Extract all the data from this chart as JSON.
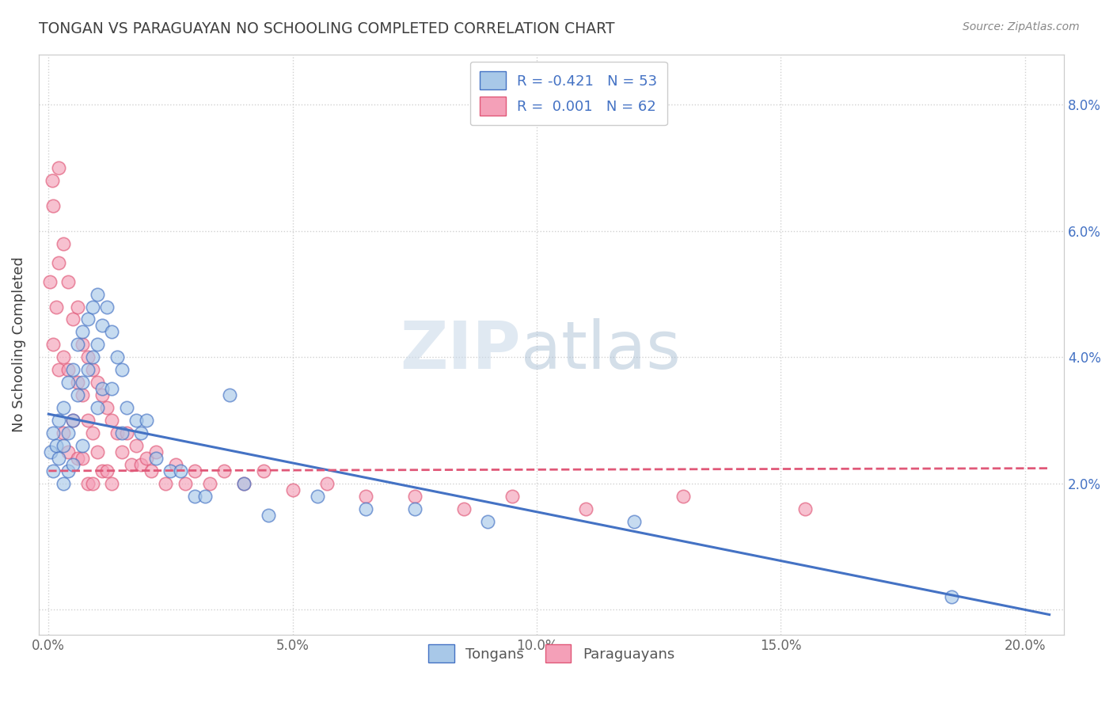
{
  "title": "TONGAN VS PARAGUAYAN NO SCHOOLING COMPLETED CORRELATION CHART",
  "source": "Source: ZipAtlas.com",
  "ylabel": "No Schooling Completed",
  "legend_tongan_label": "Tongans",
  "legend_paraguayan_label": "Paraguayans",
  "legend_line1": "R = -0.421   N = 53",
  "legend_line2": "R =  0.001   N = 62",
  "xlim": [
    -0.002,
    0.208
  ],
  "ylim": [
    -0.004,
    0.088
  ],
  "xticks": [
    0.0,
    0.05,
    0.1,
    0.15,
    0.2
  ],
  "xticklabels": [
    "0.0%",
    "5.0%",
    "10.0%",
    "15.0%",
    "20.0%"
  ],
  "yticks": [
    0.0,
    0.02,
    0.04,
    0.06,
    0.08
  ],
  "yticklabels_right": [
    "",
    "2.0%",
    "4.0%",
    "6.0%",
    "8.0%"
  ],
  "color_tongan": "#a8c8e8",
  "color_paraguayan": "#f4a0b8",
  "line_color_tongan": "#4472c4",
  "line_color_paraguayan": "#e05878",
  "background_color": "#ffffff",
  "title_color": "#404040",
  "grid_color": "#cccccc",
  "tongan_x": [
    0.0005,
    0.001,
    0.001,
    0.0015,
    0.002,
    0.002,
    0.003,
    0.003,
    0.003,
    0.004,
    0.004,
    0.004,
    0.005,
    0.005,
    0.005,
    0.006,
    0.006,
    0.007,
    0.007,
    0.007,
    0.008,
    0.008,
    0.009,
    0.009,
    0.01,
    0.01,
    0.01,
    0.011,
    0.011,
    0.012,
    0.013,
    0.013,
    0.014,
    0.015,
    0.015,
    0.016,
    0.018,
    0.019,
    0.02,
    0.022,
    0.025,
    0.027,
    0.03,
    0.032,
    0.037,
    0.04,
    0.045,
    0.055,
    0.065,
    0.075,
    0.09,
    0.12,
    0.185
  ],
  "tongan_y": [
    0.025,
    0.022,
    0.028,
    0.026,
    0.024,
    0.03,
    0.032,
    0.026,
    0.02,
    0.036,
    0.028,
    0.022,
    0.038,
    0.03,
    0.023,
    0.042,
    0.034,
    0.044,
    0.036,
    0.026,
    0.046,
    0.038,
    0.048,
    0.04,
    0.05,
    0.042,
    0.032,
    0.045,
    0.035,
    0.048,
    0.044,
    0.035,
    0.04,
    0.038,
    0.028,
    0.032,
    0.03,
    0.028,
    0.03,
    0.024,
    0.022,
    0.022,
    0.018,
    0.018,
    0.034,
    0.02,
    0.015,
    0.018,
    0.016,
    0.016,
    0.014,
    0.014,
    0.002
  ],
  "paraguayan_x": [
    0.0003,
    0.0008,
    0.001,
    0.001,
    0.0015,
    0.002,
    0.002,
    0.002,
    0.003,
    0.003,
    0.003,
    0.004,
    0.004,
    0.004,
    0.005,
    0.005,
    0.006,
    0.006,
    0.006,
    0.007,
    0.007,
    0.007,
    0.008,
    0.008,
    0.008,
    0.009,
    0.009,
    0.009,
    0.01,
    0.01,
    0.011,
    0.011,
    0.012,
    0.012,
    0.013,
    0.013,
    0.014,
    0.015,
    0.016,
    0.017,
    0.018,
    0.019,
    0.02,
    0.021,
    0.022,
    0.024,
    0.026,
    0.028,
    0.03,
    0.033,
    0.036,
    0.04,
    0.044,
    0.05,
    0.057,
    0.065,
    0.075,
    0.085,
    0.095,
    0.11,
    0.13,
    0.155
  ],
  "paraguayan_y": [
    0.052,
    0.068,
    0.042,
    0.064,
    0.048,
    0.07,
    0.055,
    0.038,
    0.058,
    0.04,
    0.028,
    0.052,
    0.038,
    0.025,
    0.046,
    0.03,
    0.048,
    0.036,
    0.024,
    0.042,
    0.034,
    0.024,
    0.04,
    0.03,
    0.02,
    0.038,
    0.028,
    0.02,
    0.036,
    0.025,
    0.034,
    0.022,
    0.032,
    0.022,
    0.03,
    0.02,
    0.028,
    0.025,
    0.028,
    0.023,
    0.026,
    0.023,
    0.024,
    0.022,
    0.025,
    0.02,
    0.023,
    0.02,
    0.022,
    0.02,
    0.022,
    0.02,
    0.022,
    0.019,
    0.02,
    0.018,
    0.018,
    0.016,
    0.018,
    0.016,
    0.018,
    0.016
  ],
  "tongan_trend": [
    0.031,
    -0.155
  ],
  "paraguayan_trend": [
    0.022,
    0.002
  ]
}
